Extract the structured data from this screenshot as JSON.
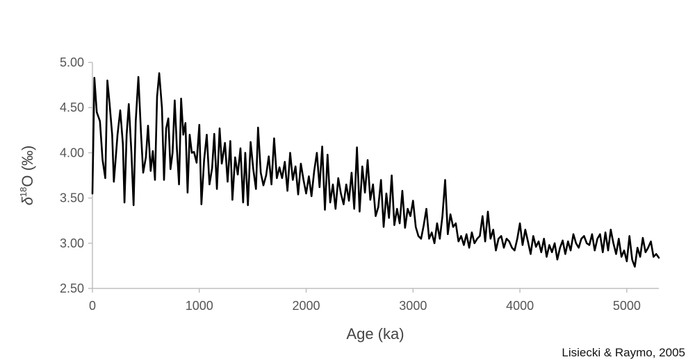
{
  "chart_data": {
    "type": "line",
    "ylabel_parts": [
      "δ",
      "18",
      "O (‰)"
    ],
    "xlabel": "Age (ka)",
    "xlim": [
      0,
      5300
    ],
    "ylim": [
      2.5,
      5.0
    ],
    "xticks": [
      0,
      1000,
      2000,
      3000,
      4000,
      5000
    ],
    "xtick_labels": [
      "0",
      "1000",
      "2000",
      "3000",
      "4000",
      "5000"
    ],
    "yticks": [
      2.5,
      3.0,
      3.5,
      4.0,
      4.5,
      5.0
    ],
    "ytick_labels": [
      "2.50",
      "3.00",
      "3.50",
      "4.00",
      "4.50",
      "5.00"
    ],
    "grid": false,
    "line_color": "#000000",
    "axis_color": "#bfbfbf",
    "series": [
      {
        "x": [
          0,
          18,
          40,
          70,
          95,
          120,
          140,
          160,
          185,
          200,
          215,
          235,
          260,
          285,
          300,
          320,
          340,
          365,
          385,
          405,
          430,
          455,
          475,
          500,
          520,
          545,
          565,
          585,
          605,
          625,
          650,
          670,
          690,
          710,
          730,
          750,
          770,
          790,
          810,
          830,
          850,
          870,
          890,
          910,
          930,
          950,
          975,
          1000,
          1020,
          1045,
          1070,
          1095,
          1120,
          1140,
          1165,
          1190,
          1210,
          1240,
          1265,
          1290,
          1310,
          1335,
          1360,
          1385,
          1410,
          1430,
          1455,
          1480,
          1505,
          1530,
          1550,
          1575,
          1600,
          1625,
          1650,
          1675,
          1700,
          1725,
          1750,
          1775,
          1800,
          1825,
          1850,
          1875,
          1900,
          1925,
          1950,
          1975,
          2000,
          2025,
          2050,
          2075,
          2100,
          2125,
          2150,
          2175,
          2200,
          2225,
          2250,
          2275,
          2300,
          2325,
          2350,
          2375,
          2400,
          2425,
          2450,
          2475,
          2500,
          2525,
          2550,
          2575,
          2600,
          2625,
          2650,
          2675,
          2700,
          2725,
          2750,
          2775,
          2800,
          2825,
          2850,
          2875,
          2900,
          2925,
          2950,
          2975,
          3000,
          3025,
          3050,
          3075,
          3100,
          3125,
          3150,
          3175,
          3200,
          3225,
          3250,
          3275,
          3300,
          3325,
          3350,
          3375,
          3400,
          3425,
          3450,
          3475,
          3500,
          3525,
          3550,
          3575,
          3600,
          3625,
          3650,
          3675,
          3700,
          3725,
          3750,
          3775,
          3800,
          3825,
          3850,
          3875,
          3900,
          3925,
          3950,
          3975,
          4000,
          4025,
          4050,
          4075,
          4100,
          4125,
          4150,
          4175,
          4200,
          4225,
          4250,
          4275,
          4300,
          4325,
          4350,
          4375,
          4400,
          4425,
          4450,
          4475,
          4500,
          4525,
          4550,
          4575,
          4600,
          4625,
          4650,
          4675,
          4700,
          4725,
          4750,
          4775,
          4800,
          4825,
          4850,
          4875,
          4900,
          4925,
          4950,
          4975,
          5000,
          5025,
          5050,
          5075,
          5100,
          5125,
          5150,
          5175,
          5200,
          5225,
          5250,
          5275,
          5300
        ],
        "y": [
          3.55,
          4.83,
          4.45,
          4.35,
          3.92,
          3.72,
          4.8,
          4.55,
          4.2,
          3.68,
          3.9,
          4.2,
          4.47,
          4.1,
          3.45,
          4.2,
          4.54,
          4.0,
          3.42,
          4.35,
          4.84,
          4.2,
          3.78,
          3.95,
          4.3,
          3.8,
          4.02,
          3.7,
          4.62,
          4.88,
          4.5,
          3.7,
          4.27,
          4.38,
          3.82,
          4.0,
          4.58,
          4.05,
          3.65,
          4.6,
          4.2,
          4.33,
          3.56,
          4.2,
          4.0,
          4.01,
          3.89,
          4.31,
          3.43,
          3.92,
          4.2,
          3.65,
          3.83,
          4.21,
          3.6,
          4.27,
          3.88,
          4.11,
          3.68,
          4.13,
          3.48,
          3.95,
          3.76,
          4.05,
          3.45,
          4.0,
          3.42,
          4.12,
          3.82,
          3.6,
          4.28,
          3.78,
          3.64,
          3.75,
          3.96,
          3.65,
          4.16,
          3.72,
          3.84,
          3.72,
          3.9,
          3.58,
          4.0,
          3.7,
          3.85,
          3.54,
          3.88,
          3.7,
          3.55,
          3.74,
          3.52,
          3.8,
          4.0,
          3.62,
          4.07,
          3.37,
          3.98,
          3.45,
          3.65,
          3.38,
          3.72,
          3.55,
          3.43,
          3.65,
          3.47,
          3.78,
          3.38,
          4.06,
          3.35,
          3.85,
          3.56,
          3.92,
          3.48,
          3.65,
          3.3,
          3.4,
          3.7,
          3.18,
          3.55,
          3.28,
          3.75,
          3.2,
          3.38,
          3.22,
          3.58,
          3.17,
          3.38,
          3.3,
          3.47,
          3.18,
          3.08,
          3.05,
          3.2,
          3.38,
          3.05,
          3.12,
          3.0,
          3.22,
          3.05,
          3.3,
          3.7,
          3.1,
          3.32,
          3.18,
          3.22,
          3.02,
          3.08,
          2.98,
          3.1,
          2.95,
          3.12,
          3.0,
          3.05,
          3.08,
          3.3,
          3.02,
          3.35,
          3.05,
          3.15,
          2.92,
          3.05,
          3.08,
          2.95,
          3.05,
          3.02,
          2.95,
          2.92,
          3.05,
          3.22,
          2.98,
          3.15,
          3.02,
          2.88,
          3.08,
          2.96,
          3.02,
          2.9,
          3.05,
          2.85,
          2.98,
          2.9,
          3.0,
          2.82,
          2.95,
          3.03,
          2.88,
          3.02,
          2.92,
          3.1,
          3.0,
          2.95,
          3.05,
          3.08,
          3.0,
          2.98,
          3.1,
          2.92,
          3.05,
          3.1,
          2.9,
          3.12,
          2.92,
          3.15,
          3.0,
          2.88,
          3.05,
          2.85,
          2.92,
          2.8,
          3.08,
          2.82,
          2.74,
          2.95,
          2.85,
          3.06,
          2.9,
          2.95,
          3.02,
          2.85,
          2.88,
          2.84
        ]
      }
    ]
  },
  "source_note": "Lisiecki & Raymo, 2005"
}
